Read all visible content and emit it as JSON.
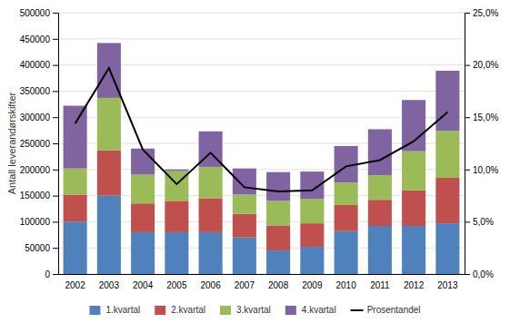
{
  "chart_data": {
    "type": "bar",
    "stacked": true,
    "categories": [
      "2002",
      "2003",
      "2004",
      "2005",
      "2006",
      "2007",
      "2008",
      "2009",
      "2010",
      "2011",
      "2012",
      "2013"
    ],
    "ylabel": "Antall leverandørskifter",
    "ylim": [
      0,
      500000
    ],
    "yticks": [
      0,
      50000,
      100000,
      150000,
      200000,
      250000,
      300000,
      350000,
      400000,
      450000,
      500000
    ],
    "y2lim": [
      0,
      0.25
    ],
    "y2ticks": [
      {
        "value": 0.0,
        "label": "0,0%"
      },
      {
        "value": 0.05,
        "label": "5,0%"
      },
      {
        "value": 0.1,
        "label": "10,0%"
      },
      {
        "value": 0.15,
        "label": "15,0%"
      },
      {
        "value": 0.2,
        "label": "20,0%"
      },
      {
        "value": 0.25,
        "label": "25,0%"
      }
    ],
    "grid": true,
    "legend": "bottom",
    "series": [
      {
        "name": "1.kvartal",
        "color": "#4F81BD",
        "values": [
          100000,
          150000,
          80000,
          80000,
          80000,
          70000,
          45000,
          52000,
          82000,
          92000,
          92000,
          97000
        ]
      },
      {
        "name": "2.kvartal",
        "color": "#C0504D",
        "values": [
          52000,
          87000,
          55000,
          60000,
          65000,
          45000,
          48000,
          45000,
          50000,
          50000,
          68000,
          87000
        ]
      },
      {
        "name": "3.kvartal",
        "color": "#9BBB59",
        "values": [
          50000,
          100000,
          55000,
          57000,
          60000,
          37000,
          47000,
          47000,
          43000,
          47000,
          75000,
          90000
        ]
      },
      {
        "name": "4.kvartal",
        "color": "#8064A2",
        "values": [
          120000,
          105000,
          50000,
          3000,
          68000,
          50000,
          55000,
          52000,
          70000,
          88000,
          98000,
          115000
        ]
      },
      {
        "name": "Prosentandel",
        "type": "line",
        "axis": "y2",
        "color": "#000000",
        "values": [
          0.144,
          0.197,
          0.119,
          0.086,
          0.116,
          0.083,
          0.079,
          0.08,
          0.103,
          0.109,
          0.127,
          0.155
        ]
      }
    ]
  }
}
